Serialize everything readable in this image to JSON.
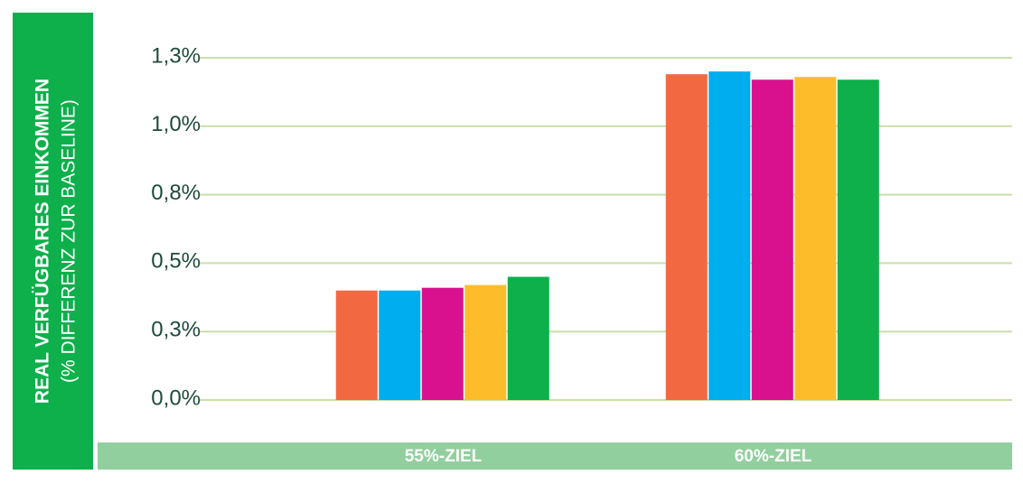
{
  "chart_data": {
    "type": "bar",
    "ylabel": "REAL VERFÜGBARES EINKOMMEN",
    "ylabel_sub": "(% DIFFERENZ ZUR BASELINE)",
    "categories": [
      "55%-ZIEL",
      "60%-ZIEL"
    ],
    "series": [
      {
        "color": "#f26841",
        "values": [
          0.4,
          1.19
        ]
      },
      {
        "color": "#00aeef",
        "values": [
          0.4,
          1.2
        ]
      },
      {
        "color": "#d9118e",
        "values": [
          0.41,
          1.17
        ]
      },
      {
        "color": "#fdbd2a",
        "values": [
          0.42,
          1.18
        ]
      },
      {
        "color": "#0db04b",
        "values": [
          0.45,
          1.17
        ]
      }
    ],
    "ylim": [
      0,
      1.25
    ],
    "yticks": [
      {
        "value": 0,
        "label": "0,0%"
      },
      {
        "value": 0.25,
        "label": "0,3%"
      },
      {
        "value": 0.5,
        "label": "0,5%"
      },
      {
        "value": 0.75,
        "label": "0,8%"
      },
      {
        "value": 1.0,
        "label": "1,0%"
      },
      {
        "value": 1.25,
        "label": "1,3%"
      }
    ],
    "grid": true
  }
}
